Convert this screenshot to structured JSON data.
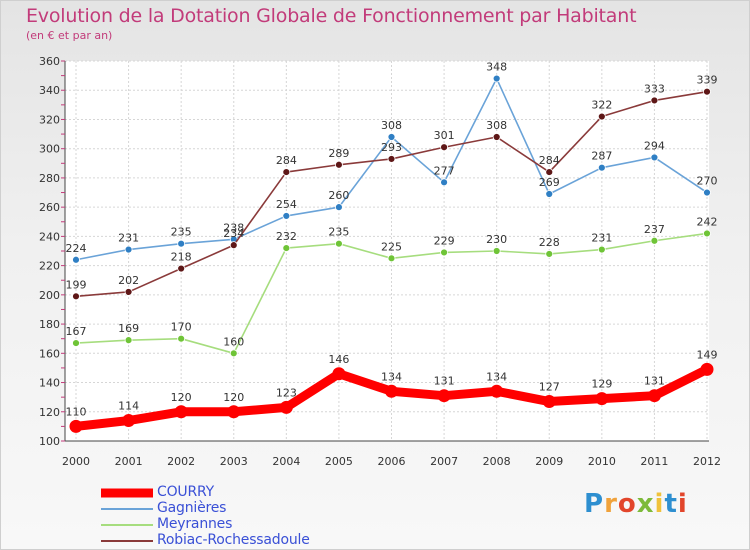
{
  "title": "Evolution de la Dotation Globale de Fonctionnement par Habitant",
  "subtitle": "(en € et par an)",
  "logo": {
    "text": "Proxiti",
    "colors": [
      "#2e8fd0",
      "#f0a23b",
      "#e2452b",
      "#7dba3a",
      "#f0c23b",
      "#2e8fd0",
      "#e2452b"
    ]
  },
  "chart_data": {
    "type": "line",
    "x": [
      "2000",
      "2001",
      "2002",
      "2003",
      "2004",
      "2005",
      "2006",
      "2007",
      "2008",
      "2009",
      "2010",
      "2011",
      "2012"
    ],
    "ylim": [
      100,
      360
    ],
    "yticks": [
      100,
      120,
      140,
      160,
      180,
      200,
      220,
      240,
      260,
      280,
      300,
      320,
      340,
      360
    ],
    "grid": true,
    "legend_position": "bottom-left",
    "series": [
      {
        "name": "COURRY",
        "color": "#ff0000",
        "values": [
          110,
          114,
          120,
          120,
          123,
          146,
          134,
          131,
          134,
          127,
          129,
          131,
          149
        ]
      },
      {
        "name": "Gagnières",
        "color": "#6aa3d8",
        "marker": "#2f7fc4",
        "values": [
          224,
          231,
          235,
          238,
          254,
          260,
          308,
          277,
          348,
          269,
          287,
          294,
          270
        ]
      },
      {
        "name": "Meyrannes",
        "color": "#a6dd7e",
        "marker": "#6fc437",
        "values": [
          167,
          169,
          170,
          160,
          232,
          235,
          225,
          229,
          230,
          228,
          231,
          237,
          242
        ]
      },
      {
        "name": "Robiac-Rochessadoule",
        "color": "#8a3a3a",
        "marker": "#5e1717",
        "values": [
          199,
          202,
          218,
          234,
          284,
          289,
          293,
          301,
          308,
          284,
          322,
          333,
          339
        ]
      }
    ]
  }
}
